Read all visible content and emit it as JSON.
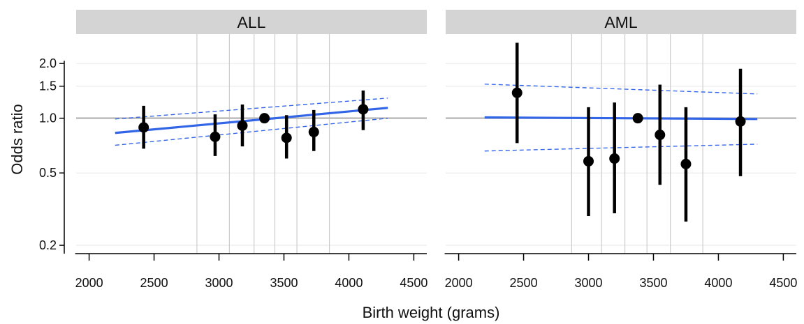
{
  "chart_data": {
    "type": "scatter",
    "xlabel": "Birth weight (grams)",
    "ylabel": "Odds ratio",
    "x_ticks": [
      "2000",
      "2500",
      "3000",
      "3500",
      "4000",
      "4500"
    ],
    "y_ticks": [
      "0.2",
      "0.5",
      "1.0",
      "1.5",
      "2.0"
    ],
    "xlim": [
      1900,
      4600
    ],
    "ylim": [
      0.18,
      2.9
    ],
    "y_scale": "log",
    "reference_line_y": 1.0,
    "colors": {
      "points": "#000000",
      "fit": "#3366e6",
      "strip": "#d4d4d4",
      "grid": "#cccccc",
      "ref": "#bbbbbb"
    },
    "panels": [
      {
        "strip_label": "ALL",
        "grid_x": [
          2830,
          3080,
          3270,
          3430,
          3600,
          3850
        ],
        "points": [
          {
            "x": 2420,
            "y": 0.89,
            "lo": 0.68,
            "hi": 1.17
          },
          {
            "x": 2970,
            "y": 0.79,
            "lo": 0.62,
            "hi": 1.05
          },
          {
            "x": 3180,
            "y": 0.91,
            "lo": 0.7,
            "hi": 1.19
          },
          {
            "x": 3350,
            "y": 1.0,
            "lo": 1.0,
            "hi": 1.0
          },
          {
            "x": 3520,
            "y": 0.78,
            "lo": 0.6,
            "hi": 1.04
          },
          {
            "x": 3730,
            "y": 0.84,
            "lo": 0.66,
            "hi": 1.11
          },
          {
            "x": 4110,
            "y": 1.12,
            "lo": 0.86,
            "hi": 1.42
          }
        ],
        "fit": {
          "x": [
            2200,
            4300
          ],
          "y": [
            0.83,
            1.14
          ]
        },
        "ci_upper": {
          "x": [
            2200,
            4300
          ],
          "y": [
            0.99,
            1.29
          ]
        },
        "ci_lower": {
          "x": [
            2200,
            4300
          ],
          "y": [
            0.71,
            1.0
          ]
        }
      },
      {
        "strip_label": "AML",
        "grid_x": [
          2870,
          3100,
          3280,
          3450,
          3630,
          3880
        ],
        "points": [
          {
            "x": 2450,
            "y": 1.38,
            "lo": 0.73,
            "hi": 2.6
          },
          {
            "x": 3000,
            "y": 0.58,
            "lo": 0.29,
            "hi": 1.15
          },
          {
            "x": 3200,
            "y": 0.6,
            "lo": 0.3,
            "hi": 1.22
          },
          {
            "x": 3380,
            "y": 1.0,
            "lo": 1.0,
            "hi": 1.0
          },
          {
            "x": 3550,
            "y": 0.81,
            "lo": 0.43,
            "hi": 1.53
          },
          {
            "x": 3750,
            "y": 0.56,
            "lo": 0.27,
            "hi": 1.15
          },
          {
            "x": 4170,
            "y": 0.96,
            "lo": 0.48,
            "hi": 1.87
          }
        ],
        "fit": {
          "x": [
            2200,
            4300
          ],
          "y": [
            1.01,
            0.99
          ]
        },
        "ci_upper": {
          "x": [
            2200,
            4300
          ],
          "y": [
            1.54,
            1.36
          ]
        },
        "ci_lower": {
          "x": [
            2200,
            4300
          ],
          "y": [
            0.66,
            0.72
          ]
        }
      }
    ]
  }
}
